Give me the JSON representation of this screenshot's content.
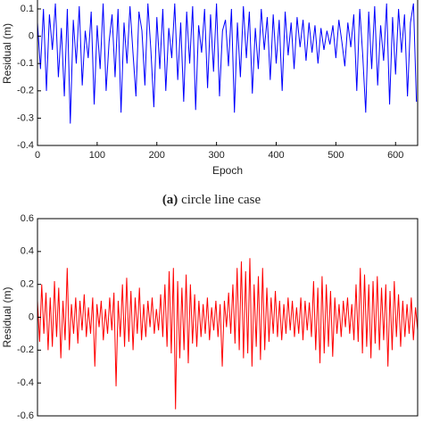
{
  "chart_data": [
    {
      "type": "line",
      "ylabel": "Residual (m)",
      "xlabel": "Epoch",
      "caption_label": "(a)",
      "caption": "circle line case",
      "xlim": [
        0,
        637
      ],
      "xticks": [
        0,
        100,
        200,
        300,
        400,
        500,
        600
      ],
      "ylim": [
        -0.4,
        0.2
      ],
      "yticks": [
        -0.4,
        -0.3,
        -0.2,
        -0.1,
        0,
        0.1
      ],
      "x": [
        0,
        5,
        10,
        15,
        20,
        25,
        30,
        35,
        40,
        45,
        50,
        55,
        60,
        65,
        70,
        75,
        80,
        85,
        90,
        95,
        100,
        105,
        110,
        115,
        120,
        125,
        130,
        135,
        140,
        145,
        150,
        155,
        160,
        165,
        170,
        175,
        180,
        185,
        190,
        195,
        200,
        205,
        210,
        215,
        220,
        225,
        230,
        235,
        240,
        245,
        250,
        255,
        260,
        265,
        270,
        275,
        280,
        285,
        290,
        295,
        300,
        305,
        310,
        315,
        320,
        325,
        330,
        335,
        340,
        345,
        350,
        355,
        360,
        365,
        370,
        375,
        380,
        385,
        390,
        395,
        400,
        405,
        410,
        415,
        420,
        425,
        430,
        435,
        440,
        445,
        450,
        455,
        460,
        465,
        470,
        475,
        480,
        485,
        490,
        495,
        500,
        505,
        510,
        515,
        520,
        525,
        530,
        535,
        540,
        545,
        550,
        555,
        560,
        565,
        570,
        575,
        580,
        585,
        590,
        595,
        600,
        605,
        610,
        615,
        620,
        625,
        630,
        635
      ],
      "series": [
        {
          "color": "#0000ff",
          "values": [
            0.05,
            -0.12,
            0.1,
            -0.2,
            0.08,
            -0.05,
            0.12,
            -0.15,
            0.03,
            -0.22,
            0.1,
            -0.32,
            0.06,
            -0.1,
            0.11,
            -0.18,
            0.02,
            -0.08,
            0.09,
            -0.25,
            0.04,
            -0.12,
            0.12,
            -0.2,
            -0.02,
            0.08,
            -0.15,
            0.1,
            -0.28,
            0.05,
            -0.1,
            0.11,
            -0.06,
            -0.22,
            0.09,
            0.02,
            -0.18,
            0.12,
            -0.05,
            -0.26,
            0.07,
            -0.12,
            0.1,
            -0.2,
            0.03,
            -0.08,
            0.12,
            -0.16,
            0.05,
            -0.24,
            0.09,
            -0.1,
            0.11,
            -0.27,
            0.04,
            -0.06,
            0.1,
            -0.19,
            0.08,
            -0.13,
            0.12,
            -0.22,
            0.02,
            0.06,
            -0.11,
            0.1,
            -0.28,
            0.05,
            -0.15,
            0.11,
            -0.08,
            0.09,
            -0.21,
            0.03,
            -0.12,
            0.1,
            -0.05,
            0.07,
            -0.16,
            0.08,
            -0.1,
            0.06,
            -0.2,
            0.09,
            -0.07,
            0.05,
            -0.12,
            0.07,
            -0.04,
            0.06,
            -0.09,
            0.05,
            -0.06,
            0.04,
            -0.1,
            0.03,
            -0.05,
            0.02,
            -0.03,
            0.04,
            -0.08,
            0.06,
            -0.02,
            -0.11,
            0.05,
            -0.04,
            0.08,
            -0.2,
            0.1,
            -0.07,
            -0.28,
            0.09,
            -0.12,
            0.11,
            -0.18,
            0.04,
            -0.09,
            0.12,
            -0.25,
            0.07,
            -0.14,
            0.1,
            -0.06,
            0.08,
            -0.22,
            0.05,
            0.12,
            -0.24
          ]
        }
      ]
    },
    {
      "type": "line",
      "ylabel": "Residual (m)",
      "ylim": [
        -0.6,
        0.6
      ],
      "yticks": [
        -0.6,
        -0.4,
        -0.2,
        0,
        0.2,
        0.4,
        0.6
      ],
      "series": [
        {
          "color": "#ff0000",
          "values": [
            0.1,
            -0.15,
            0.2,
            -0.1,
            0.15,
            -0.2,
            0.12,
            -0.18,
            0.22,
            -0.12,
            0.18,
            -0.25,
            0.1,
            -0.14,
            0.3,
            -0.2,
            0.08,
            -0.1,
            0.12,
            -0.16,
            0.1,
            -0.08,
            0.14,
            -0.12,
            0.06,
            -0.1,
            0.12,
            -0.3,
            0.08,
            -0.06,
            0.1,
            -0.14,
            0.05,
            -0.1,
            0.12,
            -0.08,
            0.15,
            -0.42,
            0.1,
            -0.12,
            0.2,
            -0.18,
            0.24,
            -0.15,
            0.16,
            -0.2,
            0.12,
            -0.1,
            0.18,
            -0.14,
            0.08,
            -0.12,
            0.1,
            -0.06,
            0.12,
            -0.1,
            0.05,
            -0.08,
            0.14,
            -0.12,
            0.2,
            -0.18,
            0.28,
            -0.22,
            0.3,
            -0.56,
            0.22,
            -0.25,
            0.18,
            -0.2,
            0.26,
            -0.28,
            0.2,
            -0.16,
            0.14,
            -0.18,
            0.1,
            -0.12,
            0.08,
            -0.1,
            0.12,
            -0.14,
            0.06,
            -0.08,
            0.1,
            -0.12,
            0.08,
            -0.3,
            0.1,
            -0.06,
            0.15,
            -0.1,
            0.2,
            -0.16,
            0.3,
            -0.2,
            0.34,
            -0.25,
            0.28,
            -0.22,
            0.36,
            -0.3,
            0.2,
            -0.18,
            0.25,
            -0.26,
            0.3,
            -0.2,
            0.18,
            -0.15,
            0.12,
            -0.1,
            0.16,
            -0.12,
            0.1,
            -0.14,
            0.08,
            -0.1,
            0.12,
            -0.08,
            0.1,
            -0.12,
            0.06,
            -0.1,
            0.12,
            -0.14,
            0.1,
            -0.08,
            0.09,
            -0.12,
            0.22,
            -0.2,
            0.18,
            -0.28,
            0.25,
            -0.22,
            0.2,
            -0.18,
            0.16,
            -0.24,
            0.12,
            -0.1,
            0.08,
            -0.12,
            0.1,
            -0.06,
            0.12,
            -0.1,
            0.08,
            -0.14,
            0.2,
            -0.15,
            0.3,
            -0.22,
            0.26,
            -0.18,
            0.2,
            -0.25,
            0.22,
            -0.16,
            0.25,
            -0.2,
            0.18,
            -0.14,
            0.2,
            -0.3,
            0.16,
            -0.2,
            0.22,
            -0.12,
            0.14,
            -0.18,
            0.1,
            -0.12,
            0.08,
            -0.1,
            0.12,
            -0.14,
            0.06,
            -0.08
          ]
        }
      ]
    }
  ]
}
